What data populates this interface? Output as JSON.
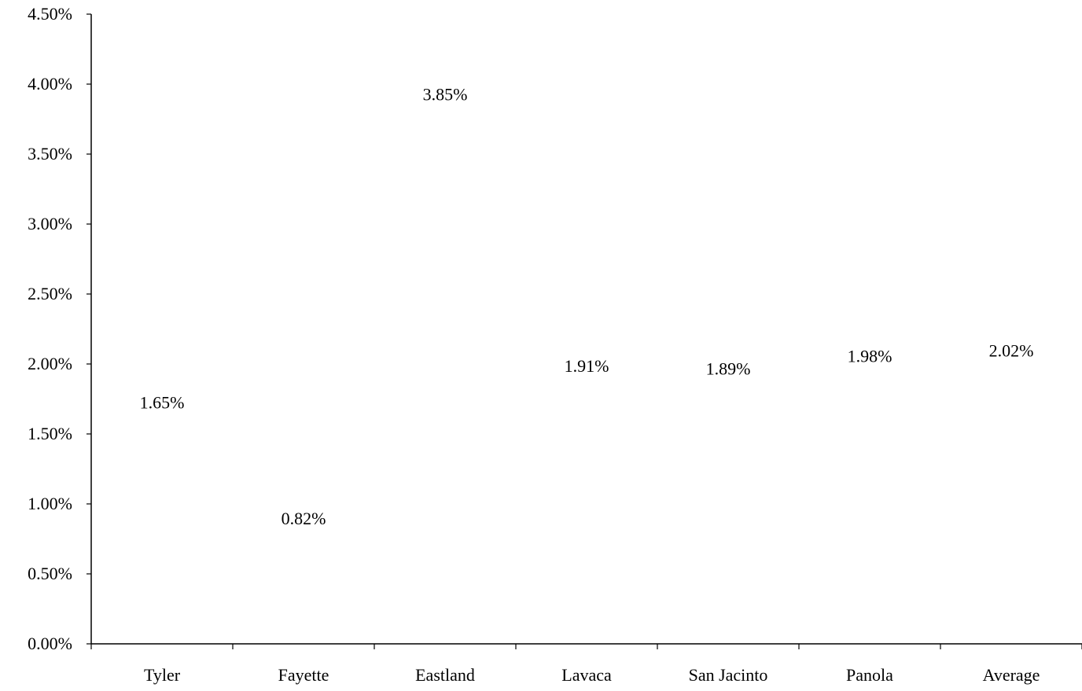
{
  "chart_data": {
    "type": "bar",
    "categories": [
      "Tyler",
      "Fayette",
      "Eastland",
      "Lavaca",
      "San Jacinto",
      "Panola",
      "Average"
    ],
    "values": [
      1.65,
      0.82,
      3.85,
      1.91,
      1.89,
      1.98,
      2.02
    ],
    "data_labels": [
      "1.65%",
      "0.82%",
      "3.85%",
      "1.91%",
      "1.89%",
      "1.98%",
      "2.02%"
    ],
    "ylim": [
      0,
      4.5
    ],
    "yticks": [
      0,
      0.5,
      1.0,
      1.5,
      2.0,
      2.5,
      3.0,
      3.5,
      4.0,
      4.5
    ],
    "ytick_labels": [
      "0.00%",
      "0.50%",
      "1.00%",
      "1.50%",
      "2.00%",
      "2.50%",
      "3.00%",
      "3.50%",
      "4.00%",
      "4.50%"
    ],
    "grid": false,
    "legend": "none",
    "bar_color": "#ffffff",
    "axis_color": "#000000"
  }
}
